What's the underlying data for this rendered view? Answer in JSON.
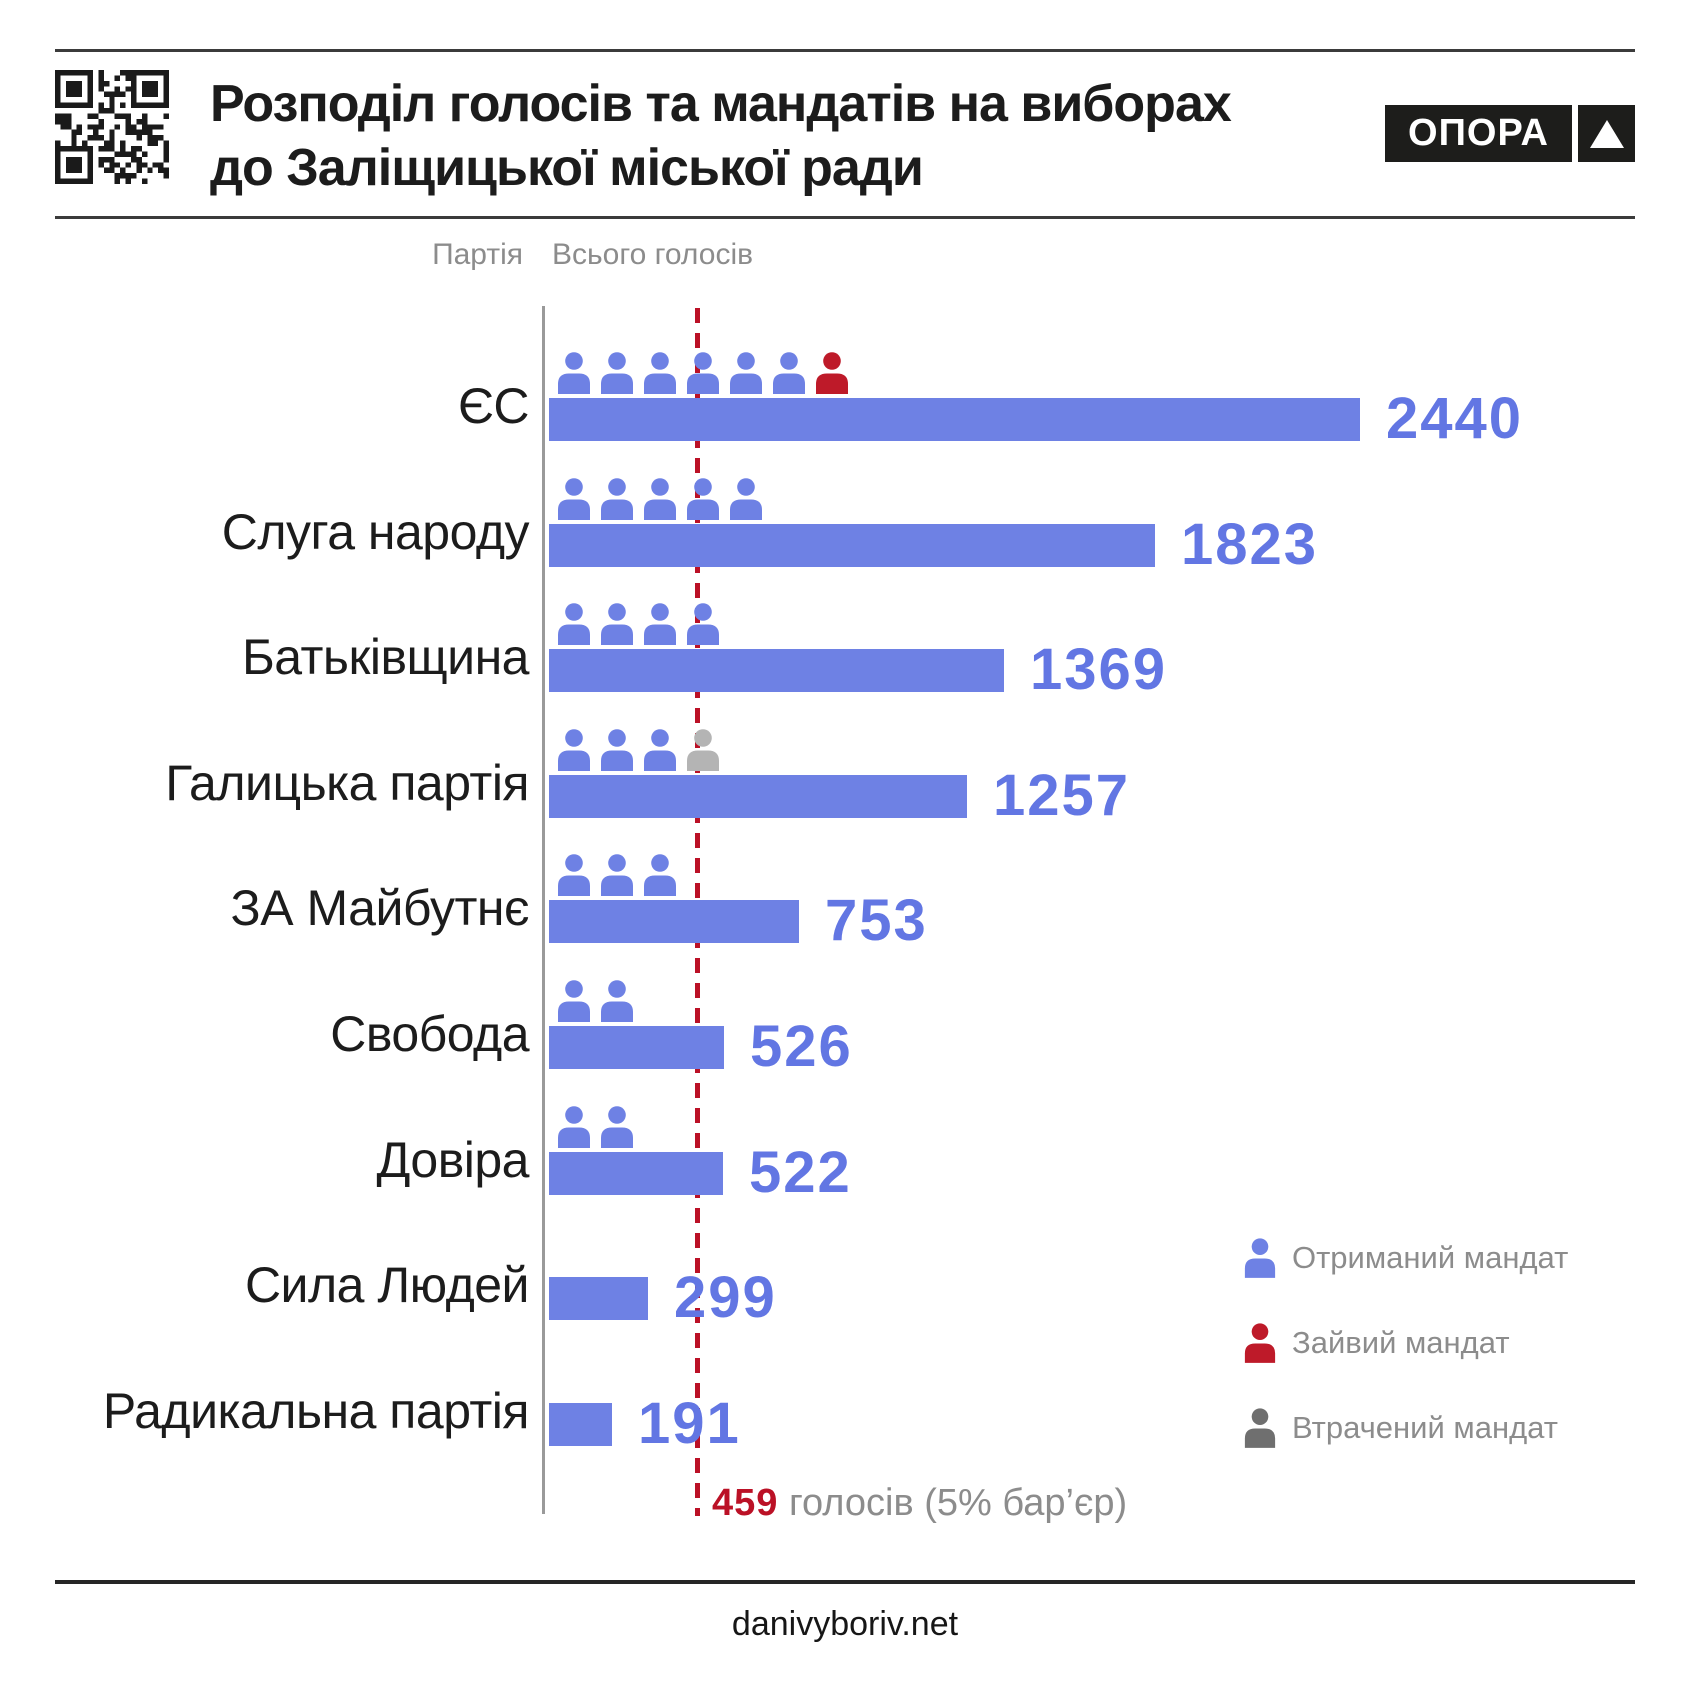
{
  "header": {
    "title_line1": "Розподіл голосів та мандатів на виборах",
    "title_line2": "до Заліщицької міської ради",
    "logo_text": "ОПОРА"
  },
  "chart_data": {
    "type": "bar",
    "orientation": "horizontal",
    "title": "Розподіл голосів та мандатів на виборах до Заліщицької міської ради",
    "column_headers": {
      "party": "Партія",
      "votes": "Всього голосів"
    },
    "categories": [
      "ЄС",
      "Слуга народу",
      "Батьківщина",
      "Галицька партія",
      "ЗА Майбутнє",
      "Свобода",
      "Довіра",
      "Сила Людей",
      "Радикальна партія"
    ],
    "values": [
      2440,
      1823,
      1369,
      1257,
      753,
      526,
      522,
      299,
      191
    ],
    "parties": [
      {
        "name": "ЄС",
        "votes": 2440,
        "mandates": {
          "received": 6,
          "excess": 1,
          "lost": 0
        }
      },
      {
        "name": "Слуга народу",
        "votes": 1823,
        "mandates": {
          "received": 5,
          "excess": 0,
          "lost": 0
        }
      },
      {
        "name": "Батьківщина",
        "votes": 1369,
        "mandates": {
          "received": 4,
          "excess": 0,
          "lost": 0
        }
      },
      {
        "name": "Галицька партія",
        "votes": 1257,
        "mandates": {
          "received": 3,
          "excess": 0,
          "lost": 1
        }
      },
      {
        "name": "ЗА Майбутнє",
        "votes": 753,
        "mandates": {
          "received": 3,
          "excess": 0,
          "lost": 0
        }
      },
      {
        "name": "Свобода",
        "votes": 526,
        "mandates": {
          "received": 2,
          "excess": 0,
          "lost": 0
        }
      },
      {
        "name": "Довіра",
        "votes": 522,
        "mandates": {
          "received": 2,
          "excess": 0,
          "lost": 0
        }
      },
      {
        "name": "Сила Людей",
        "votes": 299,
        "mandates": {
          "received": 0,
          "excess": 0,
          "lost": 0
        }
      },
      {
        "name": "Радикальна партія",
        "votes": 191,
        "mandates": {
          "received": 0,
          "excess": 0,
          "lost": 0
        }
      }
    ],
    "threshold": {
      "value": 459,
      "value_label": "459",
      "suffix": " голосів (5% бар’єр)"
    },
    "xlim": [
      0,
      2440
    ],
    "grid": false,
    "legend_position": "bottom-right"
  },
  "legend": {
    "items": [
      {
        "label": "Отриманий мандат",
        "key": "received"
      },
      {
        "label": "Зайвий мандат",
        "key": "excess"
      },
      {
        "label": "Втрачений мандат",
        "key": "lost_legend"
      }
    ]
  },
  "colors": {
    "accent_blue": "#6E81E4",
    "value_blue": "#6276E3",
    "excess_red": "#BE1A29",
    "threshold_red": "#BB1126",
    "lost_gray_row": "#B4B4B4",
    "lost_gray_legend": "#6F6F6F",
    "text_gray": "#8C8C8C",
    "text_black": "#1C1C1C"
  },
  "footer": {
    "site": "danivyboriv.net"
  }
}
